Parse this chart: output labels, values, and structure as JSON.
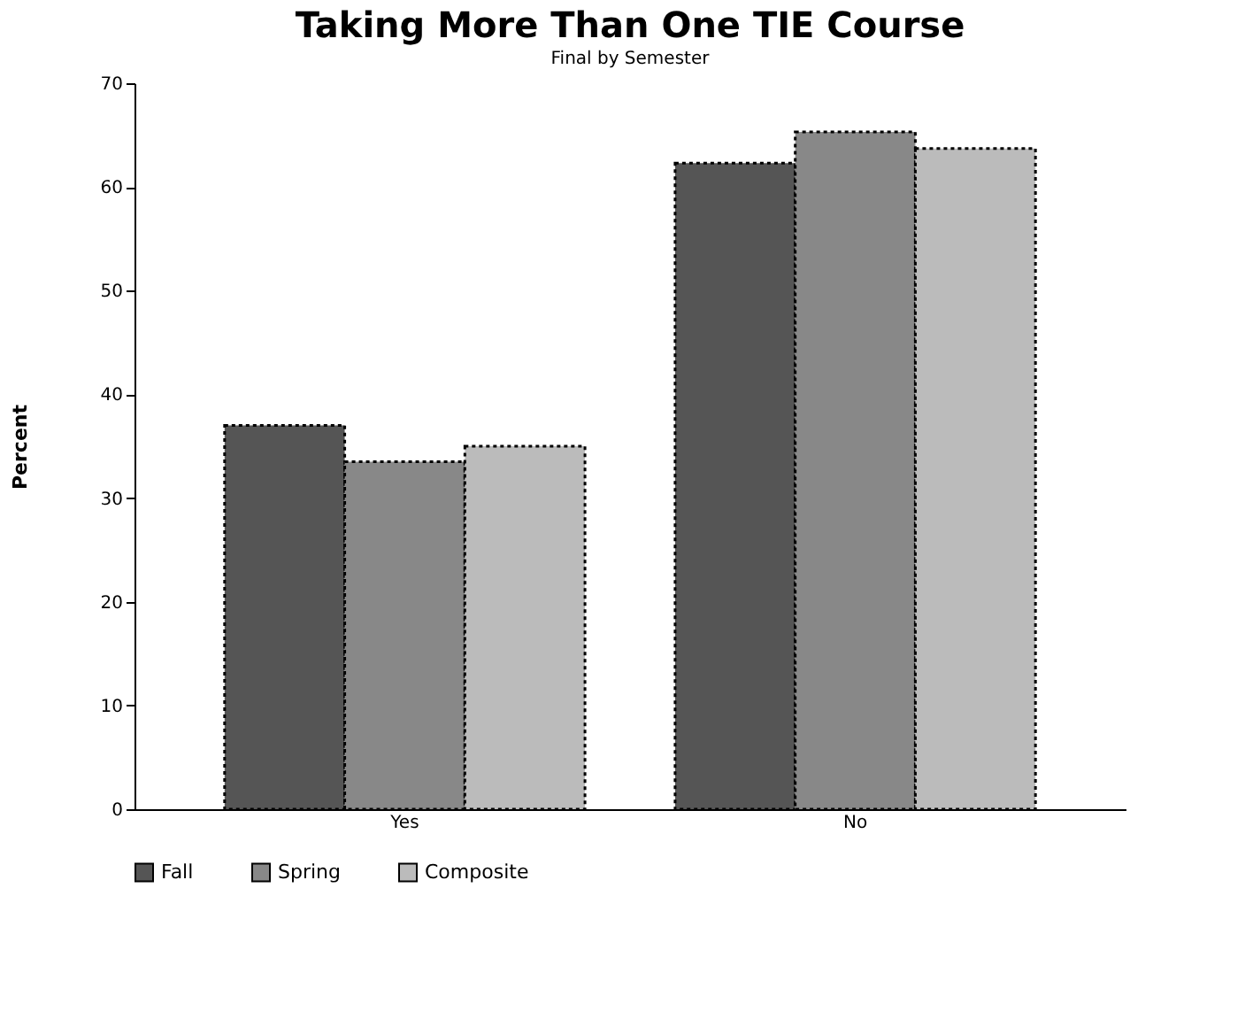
{
  "chart_data": {
    "type": "bar",
    "title": "Taking More Than One TIE Course",
    "subtitle": "Final by Semester",
    "ylabel": "Percent",
    "categories": [
      "Yes",
      "No"
    ],
    "series": [
      {
        "name": "Fall",
        "color": "#555555",
        "values": [
          37,
          62.3
        ]
      },
      {
        "name": "Spring",
        "color": "#888888",
        "values": [
          33.5,
          65.3
        ]
      },
      {
        "name": "Composite",
        "color": "#bbbbbb",
        "values": [
          35,
          63.7
        ]
      }
    ],
    "ylim": [
      0,
      70
    ],
    "yticks": [
      0,
      10,
      20,
      30,
      40,
      50,
      60,
      70
    ],
    "grid": false,
    "legend": "bottom"
  }
}
